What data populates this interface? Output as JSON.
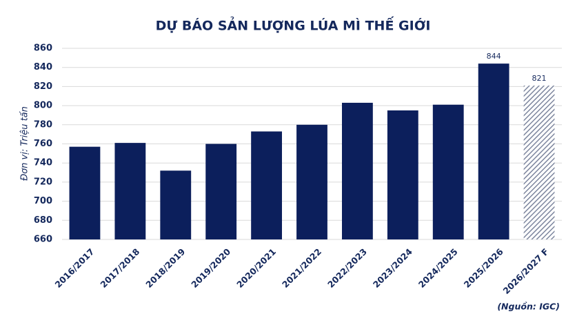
{
  "chart_data": {
    "type": "bar",
    "title": "DỰ BÁO SẢN LƯỢNG LÚA MÌ THẾ GIỚI",
    "y_label": "Đơn vị: Triệu tấn",
    "source": "(Nguồn: IGC)",
    "categories": [
      "2016/2017",
      "2017/2018",
      "2018/2019",
      "2019/2020",
      "2020/2021",
      "2021/2022",
      "2022/2023",
      "2023/2024",
      "2024/2025",
      "2025/2026",
      "2026/2027 F"
    ],
    "values": [
      757,
      761,
      732,
      760,
      773,
      780,
      803,
      795,
      801,
      844,
      821
    ],
    "value_labels": [
      null,
      null,
      null,
      null,
      null,
      null,
      null,
      null,
      null,
      "844",
      "821"
    ],
    "hatch": [
      false,
      false,
      false,
      false,
      false,
      false,
      false,
      false,
      false,
      false,
      true
    ],
    "color": "#0c1f5c",
    "hatch_color": "#7d869e",
    "ylim": [
      660,
      860
    ],
    "yticks": [
      660,
      680,
      700,
      720,
      740,
      760,
      780,
      800,
      820,
      840,
      860
    ],
    "grid": true
  }
}
